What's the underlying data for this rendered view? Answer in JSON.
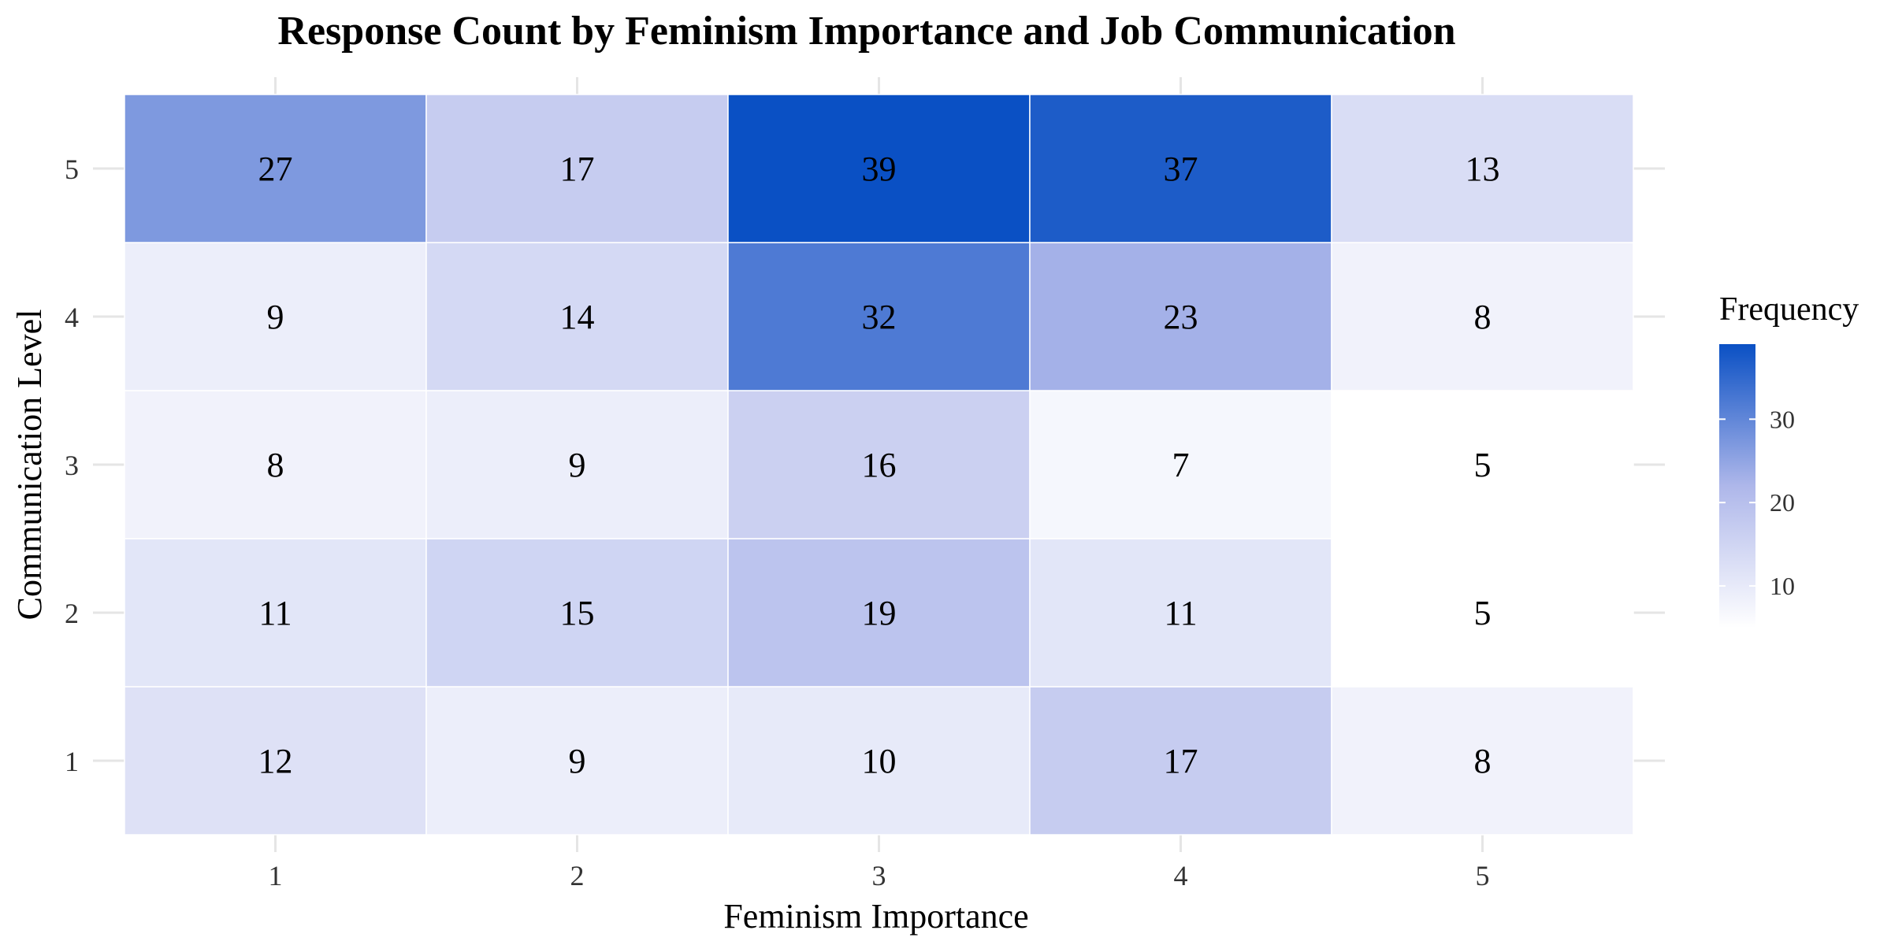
{
  "chart_data": {
    "type": "heatmap",
    "title": "Response Count by Feminism Importance and Job Communication",
    "xlabel": "Feminism Importance",
    "ylabel": "Communication Level",
    "x": [
      "1",
      "2",
      "3",
      "4",
      "5"
    ],
    "y": [
      "1",
      "2",
      "3",
      "4",
      "5"
    ],
    "values": [
      [
        12,
        9,
        10,
        17,
        8
      ],
      [
        11,
        15,
        19,
        11,
        5
      ],
      [
        8,
        9,
        16,
        7,
        5
      ],
      [
        9,
        14,
        32,
        23,
        8
      ],
      [
        27,
        17,
        39,
        37,
        13
      ]
    ],
    "legend": {
      "title": "Frequency",
      "ticks": [
        "10",
        "20",
        "30"
      ],
      "tick_values": [
        10,
        20,
        30
      ],
      "min": 5,
      "max": 39,
      "position": "right"
    },
    "colors": {
      "low": "#ffffff",
      "high": "#0a50c4",
      "grid": "#e5e5e5",
      "text": "#000000"
    },
    "grid": true
  }
}
